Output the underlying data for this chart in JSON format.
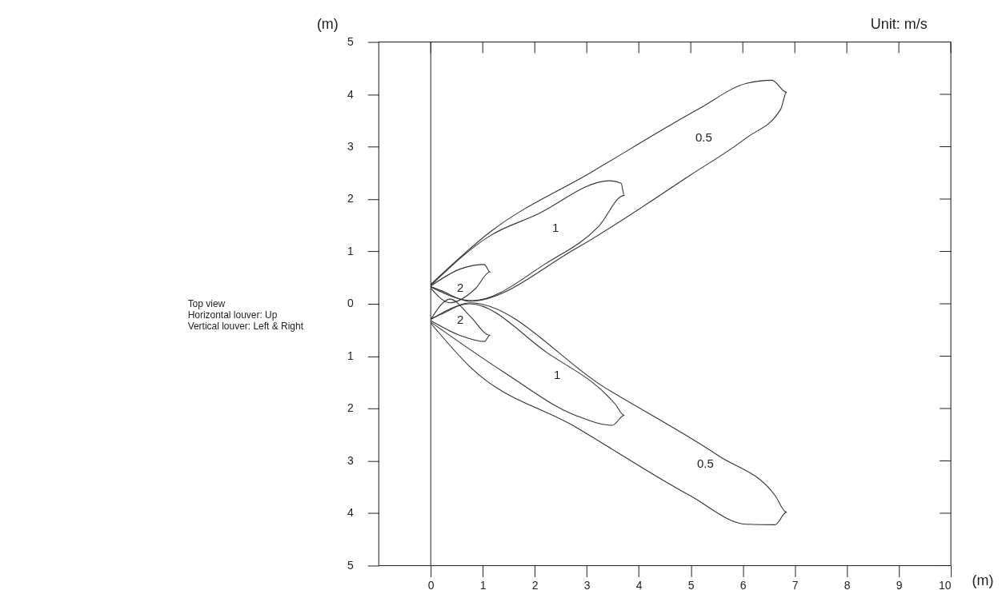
{
  "chart_data": {
    "type": "line",
    "xlabel": "(m)",
    "ylabel": "(m)",
    "xlim": [
      -1.0,
      10
    ],
    "xticks": [
      0,
      1,
      2,
      3,
      4,
      5,
      6,
      7,
      8,
      9,
      10
    ],
    "ylim": [
      -5,
      5
    ],
    "yticks": [
      {
        "value": -5,
        "label": "5"
      },
      {
        "value": -4,
        "label": "4"
      },
      {
        "value": -3,
        "label": "3"
      },
      {
        "value": -2,
        "label": "2"
      },
      {
        "value": -1,
        "label": "1"
      },
      0,
      1,
      2,
      3,
      4,
      5
    ],
    "grid": false,
    "legend": false,
    "marker": "none",
    "line_style": "solid",
    "ref_lines": [
      {
        "axis": "x",
        "value": 0,
        "label": null,
        "color": "#222222"
      }
    ],
    "series": [
      {
        "name": "0.5",
        "color": "#333333",
        "x": [
          0,
          1.14,
          3.1,
          5.15,
          6.07,
          6.56,
          6.84,
          6.73,
          6.07,
          4.98,
          2.78,
          0.75,
          0.2,
          0
        ],
        "values": [
          0.37,
          1.37,
          2.52,
          3.72,
          4.21,
          4.27,
          4.04,
          3.72,
          3.17,
          2.45,
          1.05,
          0.05,
          0.25,
          0.33
        ]
      },
      {
        "name": "1",
        "color": "#333333",
        "x": [
          0,
          1.14,
          2.01,
          3.44,
          3.66,
          3.72,
          3.23,
          2.23,
          0.8,
          0
        ],
        "values": [
          0.35,
          1.3,
          1.69,
          2.35,
          2.3,
          2.07,
          1.48,
          0.78,
          0.06,
          0.32
        ]
      },
      {
        "name": "2",
        "color": "#333333",
        "x": [
          0,
          0.58,
          1.03,
          1.14,
          0.86,
          0.37,
          0
        ],
        "values": [
          0.34,
          0.67,
          0.75,
          0.61,
          0.29,
          0.02,
          0.3
        ]
      },
      {
        "name": "0.5",
        "color": "#333333",
        "x": [
          0,
          0.75,
          2.78,
          4.98,
          6.07,
          6.62,
          6.84,
          6.62,
          5.53,
          3.33,
          0.75,
          0.2,
          0
        ],
        "values": [
          -0.37,
          -1.2,
          -2.35,
          -3.66,
          -4.21,
          -4.22,
          -3.98,
          -3.66,
          -2.9,
          -1.59,
          0.02,
          -0.2,
          -0.29
        ]
      },
      {
        "name": "1",
        "color": "#333333",
        "x": [
          0,
          1.41,
          2.78,
          3.49,
          3.72,
          3.55,
          2.23,
          0.75,
          0
        ],
        "values": [
          -0.35,
          -1.31,
          -2.13,
          -2.32,
          -2.13,
          -1.92,
          -0.93,
          0.0,
          -0.3
        ]
      },
      {
        "name": "2",
        "color": "#333333",
        "x": [
          0,
          0.58,
          1.03,
          1.14,
          0.75,
          0.37,
          0
        ],
        "values": [
          -0.32,
          -0.61,
          -0.72,
          -0.6,
          -0.23,
          0.09,
          -0.3
        ]
      }
    ],
    "annotations": [
      "Unit: m/s",
      "Top view\nHorizontal louver: Up\nVertical louver: Left & Right"
    ]
  }
}
